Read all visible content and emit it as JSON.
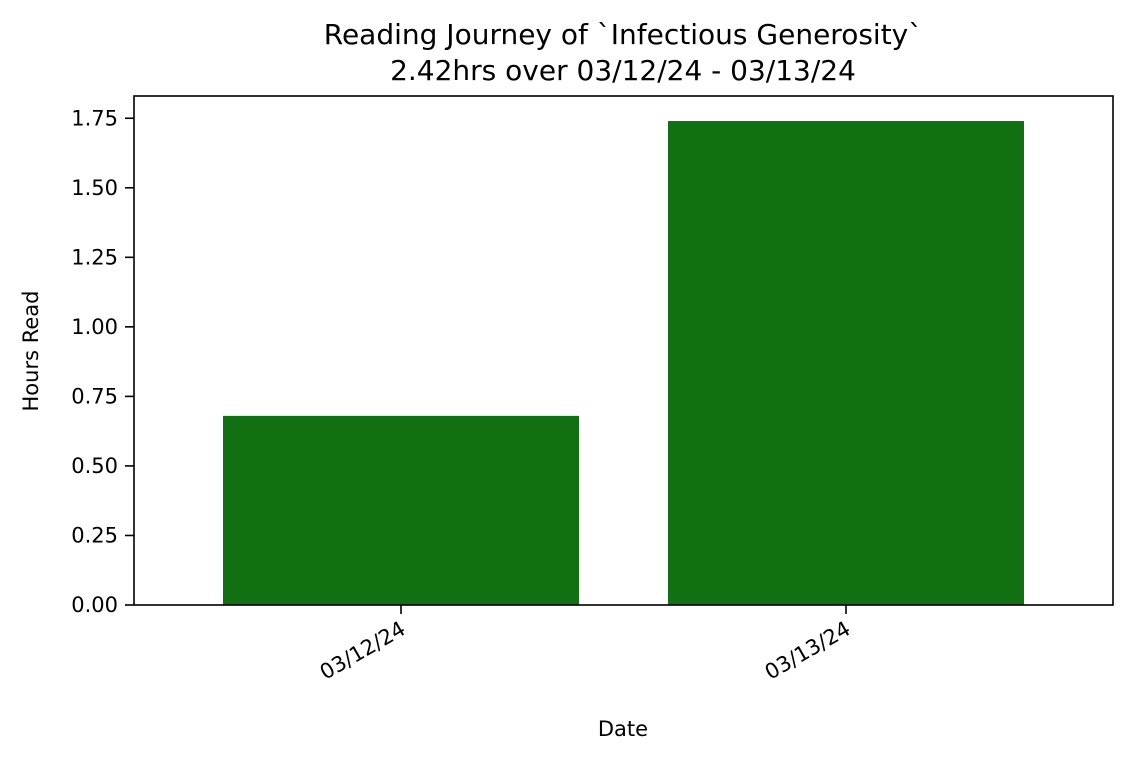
{
  "chart_data": {
    "type": "bar",
    "title": "Reading Journey of `Infectious Generosity`",
    "subtitle": "2.42hrs over 03/12/24 - 03/13/24",
    "xlabel": "Date",
    "ylabel": "Hours Read",
    "categories": [
      "03/12/24",
      "03/13/24"
    ],
    "values": [
      0.68,
      1.74
    ],
    "ylim": [
      0,
      1.83
    ],
    "yticks": [
      0.0,
      0.25,
      0.5,
      0.75,
      1.0,
      1.25,
      1.5,
      1.75
    ],
    "ytick_labels": [
      "0.00",
      "0.25",
      "0.50",
      "0.75",
      "1.00",
      "1.25",
      "1.50",
      "1.75"
    ],
    "bar_color": "#117011",
    "grid": false,
    "legend": "none"
  }
}
